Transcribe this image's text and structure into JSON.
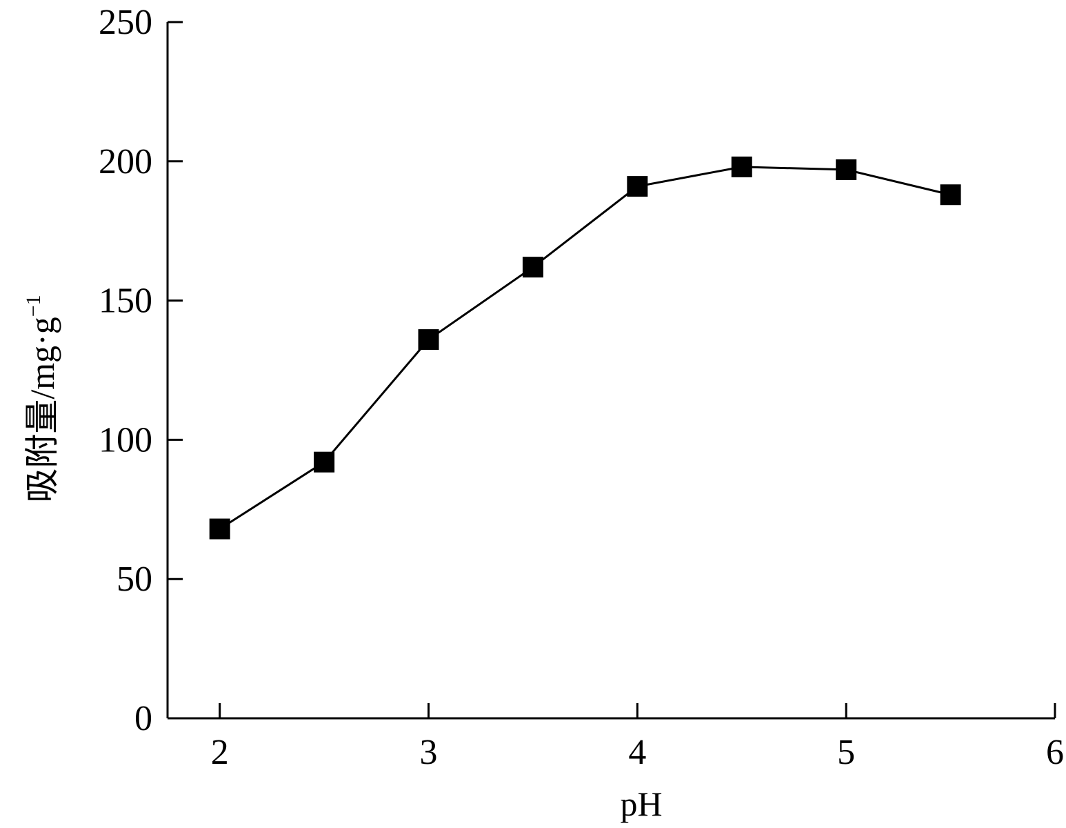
{
  "chart_data": {
    "type": "line",
    "title": "",
    "xlabel": "pH",
    "ylabel": "吸附量/mg·g",
    "ylabel_superscript": "−1",
    "xlim": [
      1.75,
      6
    ],
    "ylim": [
      0,
      250
    ],
    "x_ticks": [
      2,
      3,
      4,
      5,
      6
    ],
    "y_ticks": [
      0,
      50,
      100,
      150,
      200,
      250
    ],
    "grid": false,
    "legend": "none",
    "marker": "square",
    "colors": {
      "line": "#000000",
      "marker": "#000000",
      "axis": "#000000"
    },
    "series": [
      {
        "x": [
          2,
          2.5,
          3,
          3.5,
          4,
          4.5,
          5,
          5.5
        ],
        "y": [
          68,
          92,
          136,
          162,
          191,
          198,
          197,
          188
        ]
      }
    ]
  }
}
